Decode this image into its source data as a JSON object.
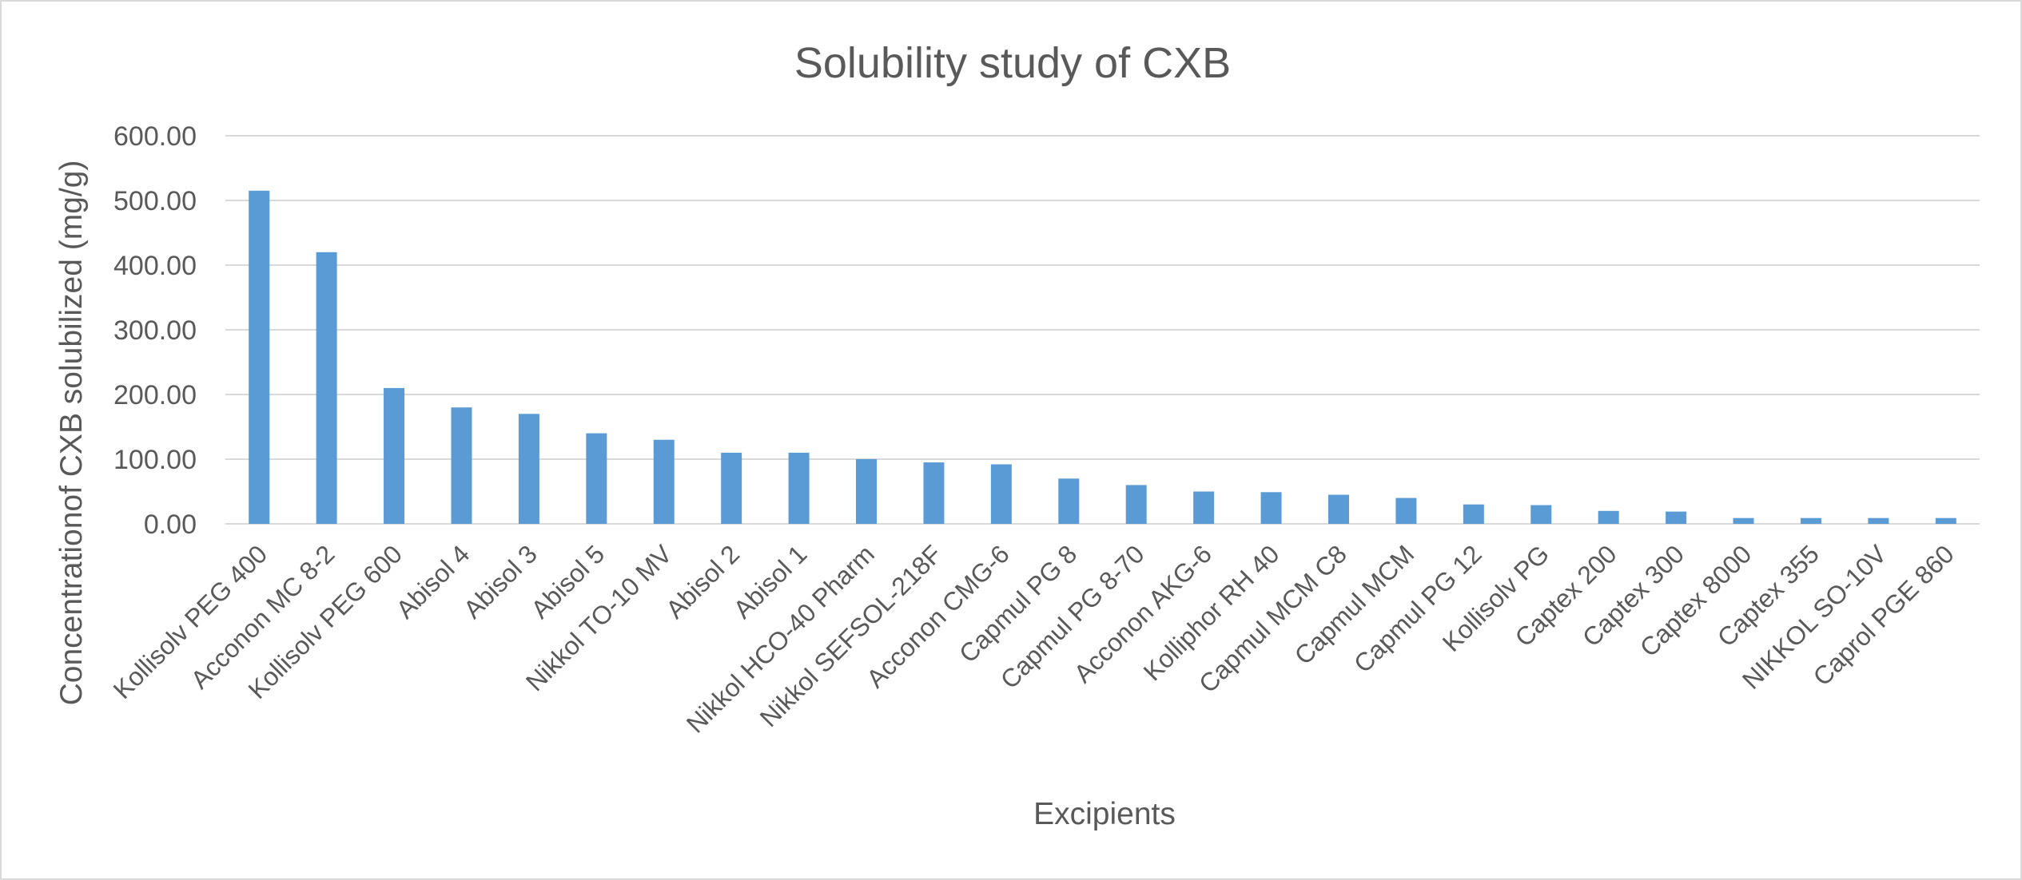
{
  "chart_data": {
    "type": "bar",
    "title": "Solubility study of CXB",
    "xlabel": "Excipients",
    "ylabel": "Concentrationof CXB solubilized (mg/g)",
    "ylim": [
      0,
      600
    ],
    "yticks": [
      "0.00",
      "100.00",
      "200.00",
      "300.00",
      "400.00",
      "500.00",
      "600.00"
    ],
    "grid": true,
    "bar_color": "#5b9bd5",
    "categories": [
      "Kollisolv PEG 400",
      "Acconon MC 8-2",
      "Kollisolv PEG 600",
      "Abisol 4",
      "Abisol 3",
      "Abisol 5",
      "Nikkol TO-10 MV",
      "Abisol 2",
      "Abisol 1",
      "Nikkol HCO-40 Pharm",
      "Nikkol SEFSOL-218F",
      "Acconon CMG-6",
      "Capmul PG 8",
      "Capmul PG 8-70",
      "Acconon AKG-6",
      "Kolliphor RH 40",
      "Capmul MCM C8",
      "Capmul MCM",
      "Capmul PG 12",
      "Kollisolv PG",
      "Captex 200",
      "Captex 300",
      "Captex 8000",
      "Captex 355",
      "NIKKOL SO-10V",
      "Caprol PGE 860"
    ],
    "values": [
      515,
      420,
      210,
      180,
      170,
      140,
      130,
      110,
      110,
      100,
      95,
      92,
      70,
      60,
      50,
      49,
      45,
      40,
      30,
      29,
      20,
      19,
      9,
      9,
      9,
      9
    ]
  }
}
